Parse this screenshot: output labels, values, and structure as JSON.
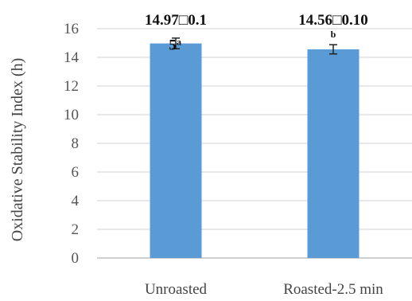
{
  "chart_data": {
    "type": "bar",
    "title": "",
    "xlabel": "",
    "ylabel": "Oxidative Stability  Index (h)",
    "categories": [
      "Unroasted",
      "Roasted-2.5 min"
    ],
    "values": [
      14.97,
      14.56
    ],
    "errors": [
      0.15,
      0.1
    ],
    "data_labels": [
      "14.97□0.1",
      "14.56□0.10"
    ],
    "data_label_continuation": [
      "5",
      ""
    ],
    "significance_letters": [
      "a",
      "b"
    ],
    "y_ticks": [
      "0",
      "2",
      "4",
      "6",
      "8",
      "10",
      "12",
      "14",
      "16"
    ],
    "ylim": [
      0,
      16
    ],
    "grid": true,
    "legend": "none",
    "bar_color": "#5b9bd5",
    "grid_color": "#d9d9d9",
    "axis_color": "#bfbfbf"
  }
}
